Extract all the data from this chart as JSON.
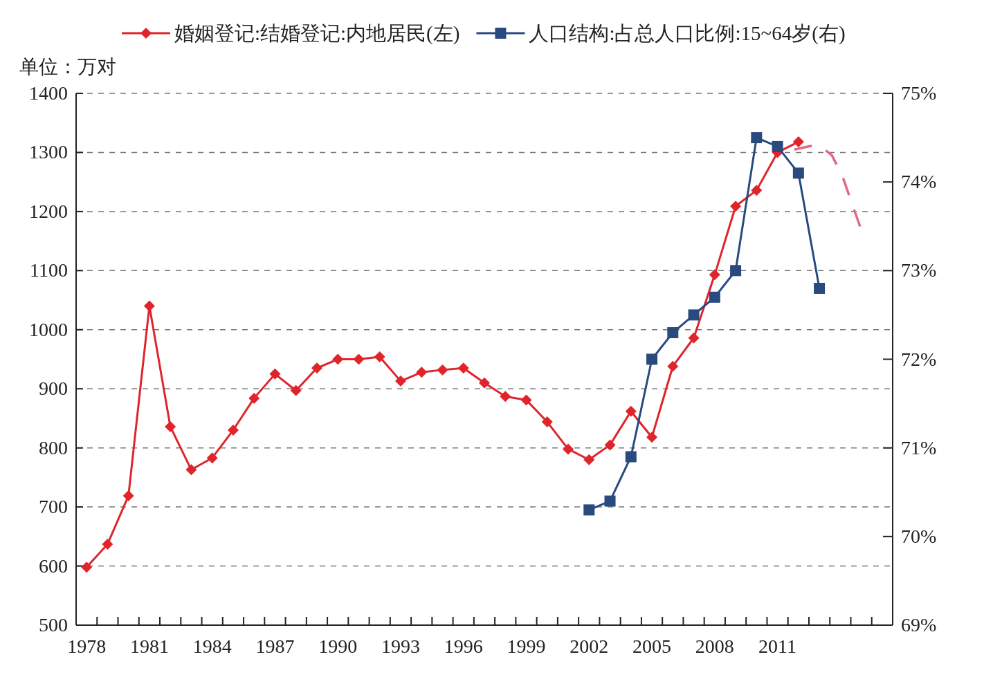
{
  "chart_data": {
    "type": "line",
    "ylabel": "单位：万对",
    "legend": "top",
    "grid": "y",
    "xlim": [
      1977.5,
      2016.5
    ],
    "ylim": [
      500,
      1400
    ],
    "y2lim": [
      69,
      75
    ],
    "yticks": [
      500,
      600,
      700,
      800,
      900,
      1000,
      1100,
      1200,
      1300,
      1400
    ],
    "y2ticks": [
      {
        "value": 69,
        "label": "69%"
      },
      {
        "value": 70,
        "label": "70%"
      },
      {
        "value": 71,
        "label": "71%"
      },
      {
        "value": 72,
        "label": "72%"
      },
      {
        "value": 73,
        "label": "73%"
      },
      {
        "value": 74,
        "label": "74%"
      },
      {
        "value": 75,
        "label": "75%"
      }
    ],
    "xticks": [
      1978,
      1981,
      1984,
      1987,
      1990,
      1993,
      1996,
      1999,
      2002,
      2005,
      2008,
      2011,
      {
        "value": 1978.5,
        "label": null
      },
      {
        "value": 1979.5,
        "label": null
      },
      {
        "value": 1980.5,
        "label": null
      },
      {
        "value": 1981.5,
        "label": null
      },
      {
        "value": 1982.5,
        "label": null
      },
      {
        "value": 1983.5,
        "label": null
      },
      {
        "value": 1984.5,
        "label": null
      },
      {
        "value": 1985.5,
        "label": null
      },
      {
        "value": 1986.5,
        "label": null
      },
      {
        "value": 1987.5,
        "label": null
      },
      {
        "value": 1988.5,
        "label": null
      },
      {
        "value": 1989.5,
        "label": null
      },
      {
        "value": 1990.5,
        "label": null
      },
      {
        "value": 1991.5,
        "label": null
      },
      {
        "value": 1992.5,
        "label": null
      },
      {
        "value": 1993.5,
        "label": null
      },
      {
        "value": 1994.5,
        "label": null
      },
      {
        "value": 1995.5,
        "label": null
      },
      {
        "value": 1996.5,
        "label": null
      },
      {
        "value": 1997.5,
        "label": null
      },
      {
        "value": 1998.5,
        "label": null
      },
      {
        "value": 1999.5,
        "label": null
      },
      {
        "value": 2000.5,
        "label": null
      },
      {
        "value": 2001.5,
        "label": null
      },
      {
        "value": 2002.5,
        "label": null
      },
      {
        "value": 2003.5,
        "label": null
      },
      {
        "value": 2004.5,
        "label": null
      },
      {
        "value": 2005.5,
        "label": null
      },
      {
        "value": 2006.5,
        "label": null
      },
      {
        "value": 2007.5,
        "label": null
      },
      {
        "value": 2008.5,
        "label": null
      },
      {
        "value": 2009.5,
        "label": null
      },
      {
        "value": 2010.5,
        "label": null
      },
      {
        "value": 2011.5,
        "label": null
      },
      {
        "value": 2012.5,
        "label": null
      },
      {
        "value": 2013.5,
        "label": null
      },
      {
        "value": 2014.5,
        "label": null
      },
      {
        "value": 2015.5,
        "label": null
      }
    ],
    "series": [
      {
        "name": "婚姻登记:结婚登记:内地居民(左)",
        "color": "#e0242c",
        "marker": "diamond",
        "x": [
          1978,
          1979,
          1980,
          1981,
          1982,
          1983,
          1984,
          1985,
          1986,
          1987,
          1988,
          1989,
          1990,
          1991,
          1992,
          1993,
          1994,
          1995,
          1996,
          1997,
          1998,
          1999,
          2000,
          2001,
          2002,
          2003,
          2004,
          2005,
          2006,
          2007,
          2008,
          2009,
          2010,
          2011,
          2012
        ],
        "values": [
          598,
          637,
          719,
          1040,
          836,
          763,
          783,
          830,
          884,
          925,
          897,
          935,
          950,
          950,
          954,
          913,
          928,
          932,
          935,
          910,
          887,
          881,
          844,
          798,
          780,
          805,
          862,
          818,
          938,
          986,
          1093,
          1209,
          1236,
          1300,
          1318
        ]
      },
      {
        "name": "人口结构:占总人口比例:15~64岁(右)",
        "color": "#284a7e",
        "marker": "square",
        "axis": "y2",
        "x": [
          2002,
          2003,
          2004,
          2005,
          2006,
          2007,
          2008,
          2009,
          2010,
          2011,
          2012,
          2013
        ],
        "values": [
          70.3,
          70.4,
          70.9,
          72.0,
          72.3,
          72.5,
          72.7,
          73.0,
          74.5,
          74.4,
          74.1,
          72.8
        ]
      },
      {
        "color": "#e06a86",
        "marker": "none",
        "line_style": "dashed",
        "x": [
          2011.8,
          2012.6,
          2013.1,
          2013.6,
          2014.1,
          2014.5,
          2015.0
        ],
        "values": [
          1305,
          1311,
          1309,
          1295,
          1260,
          1219,
          1169
        ]
      }
    ]
  }
}
